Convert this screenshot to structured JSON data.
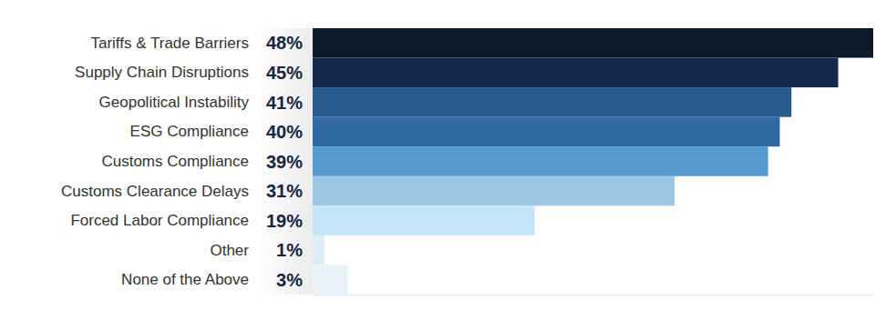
{
  "chart_data": {
    "type": "bar",
    "orientation": "horizontal",
    "categories": [
      "Tariffs & Trade Barriers",
      "Supply Chain Disruptions",
      "Geopolitical Instability",
      "ESG Compliance",
      "Customs Compliance",
      "Customs Clearance Delays",
      "Forced Labor Compliance",
      "Other",
      "None of the Above"
    ],
    "values": [
      48,
      45,
      41,
      40,
      39,
      31,
      19,
      1,
      3
    ],
    "value_labels": [
      "48%",
      "45%",
      "41%",
      "40%",
      "39%",
      "31%",
      "19%",
      "1%",
      "3%"
    ],
    "colors": [
      "#0c1a2c",
      "#13284d",
      "#2b5a8c",
      "#2f6aa6",
      "#529ad0",
      "#9cc8e6",
      "#c4e5f8",
      "#dcedf7",
      "#e8f3f8"
    ],
    "xlim": [
      0,
      48
    ],
    "data_labels": true,
    "tick_labels": "y",
    "grid": false
  }
}
